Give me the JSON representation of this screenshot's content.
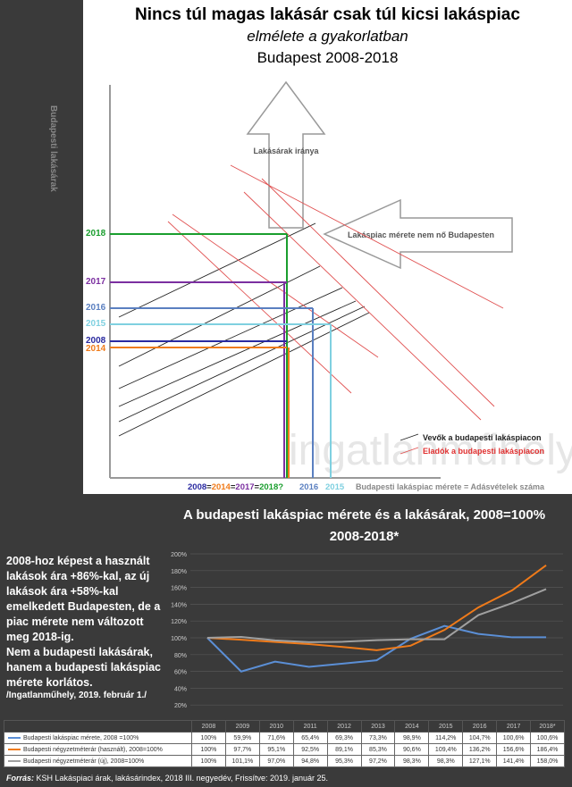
{
  "diagram": {
    "title": "Nincs túl magas lakásár csak túl kicsi lakáspiac",
    "subtitle": "elmélete a gyakorlatban",
    "period": "Budapest 2008-2018",
    "y_axis_label": "Budapesti lakásárak",
    "x_axis_label": "Budapesti lakáspiac mérete = Adásvételek száma",
    "arrow_up_label": "Lakásárak iránya",
    "arrow_left_label": "Lakáspiac mérete nem nő Budapesten",
    "legend_buyers": "Vevők a budapesti lakáspiacon",
    "legend_sellers": "Eladók a budapesti lakáspiacon",
    "year_labels": [
      {
        "text": "2018",
        "color": "#1a9e2e"
      },
      {
        "text": "2017",
        "color": "#7b2fa0"
      },
      {
        "text": "2016",
        "color": "#5a7fc0"
      },
      {
        "text": "2015",
        "color": "#7fd0e0"
      },
      {
        "text": "2008",
        "color": "#2a2aa0"
      },
      {
        "text": "2014",
        "color": "#f07b1a"
      }
    ],
    "x_labels": {
      "l2008": "2008",
      "eq1": "=",
      "l2014": "2014",
      "eq2": "=",
      "l2017": "2017",
      "eq3": "=",
      "l2018": "2018?",
      "l2016": "2016",
      "l2015": "2015"
    },
    "watermark": "ingatlanműhely"
  },
  "chart_title_1": "A budapesti lakáspiac mérete  és  a lakásárak, 2008=100%",
  "chart_title_2": "2008-2018*",
  "side_text_1": "2008-hoz képest a használt lakások ára +86%-kal, az új lakások ára +58%-kal emelkedett Budapesten, de a piac mérete nem változott meg 2018-ig.",
  "side_text_2": "Nem a budapesti lakásárak, hanem a budapesti lakáspiac mérete korlátos.",
  "side_text_3": "/Ingatlanműhely, 2019. február 1./",
  "source_label": "Forrás:",
  "source_text": " KSH Lakáspiaci árak, lakásárindex, 2018 III. negyedév, Frissítve: 2019. január 25.",
  "chart_data": {
    "type": "line",
    "categories": [
      "2008",
      "2009",
      "2010",
      "2011",
      "2012",
      "2013",
      "2014",
      "2015",
      "2016",
      "2017",
      "2018*"
    ],
    "ylim": [
      0,
      200
    ],
    "yticks": [
      "0%",
      "20%",
      "40%",
      "60%",
      "80%",
      "100%",
      "120%",
      "140%",
      "160%",
      "180%",
      "200%"
    ],
    "grid": true,
    "series": [
      {
        "name": "Budapesti lakáspiac mérete, 2008 =100%",
        "color": "#5b8fd6",
        "values": [
          100,
          59.9,
          71.6,
          65.4,
          69.3,
          73.3,
          98.9,
          114.2,
          104.7,
          100.6,
          100.6
        ],
        "labels": [
          "100%",
          "59,9%",
          "71,6%",
          "65,4%",
          "69,3%",
          "73,3%",
          "98,9%",
          "114,2%",
          "104,7%",
          "100,6%",
          "100,6%"
        ]
      },
      {
        "name": "Budapesti négyzetméterár (használt), 2008=100%",
        "color": "#f07b1a",
        "values": [
          100,
          97.7,
          95.1,
          92.5,
          89.1,
          85.3,
          90.6,
          109.4,
          136.2,
          156.6,
          186.4
        ],
        "labels": [
          "100%",
          "97,7%",
          "95,1%",
          "92,5%",
          "89,1%",
          "85,3%",
          "90,6%",
          "109,4%",
          "136,2%",
          "156,6%",
          "186,4%"
        ]
      },
      {
        "name": "Budapesti négyzetméterár (új), 2008=100%",
        "color": "#a0a0a0",
        "values": [
          100,
          101.1,
          97.0,
          94.8,
          95.3,
          97.2,
          98.3,
          98.3,
          127.1,
          141.4,
          158.0
        ],
        "labels": [
          "100%",
          "101,1%",
          "97,0%",
          "94,8%",
          "95,3%",
          "97,2%",
          "98,3%",
          "98,3%",
          "127,1%",
          "141,4%",
          "158,0%"
        ]
      }
    ]
  }
}
